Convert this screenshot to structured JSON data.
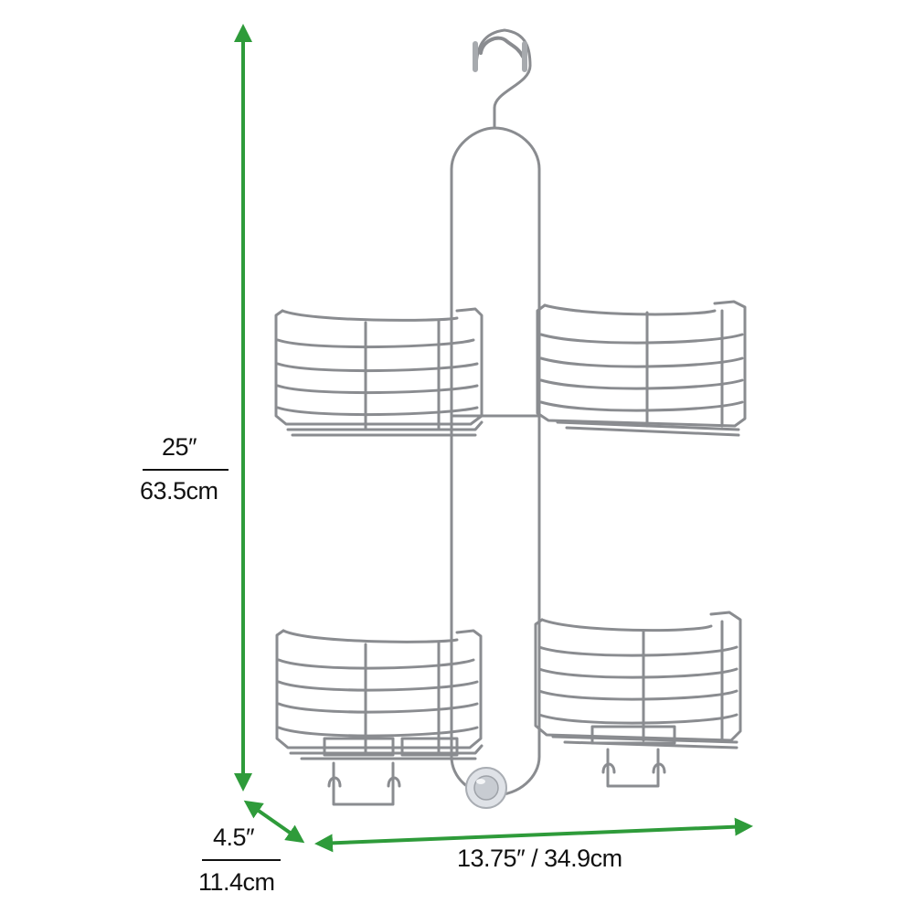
{
  "dimensions": {
    "height": {
      "imperial": "25″",
      "metric": "63.5cm"
    },
    "depth": {
      "imperial": "4.5″",
      "metric": "11.4cm"
    },
    "width": {
      "label": "13.75″ / 34.9cm"
    }
  },
  "colors": {
    "arrow": "#2e9b3a",
    "wire": "#8a8c90",
    "suction_cup": "#c8ccd2",
    "text": "#111111"
  }
}
